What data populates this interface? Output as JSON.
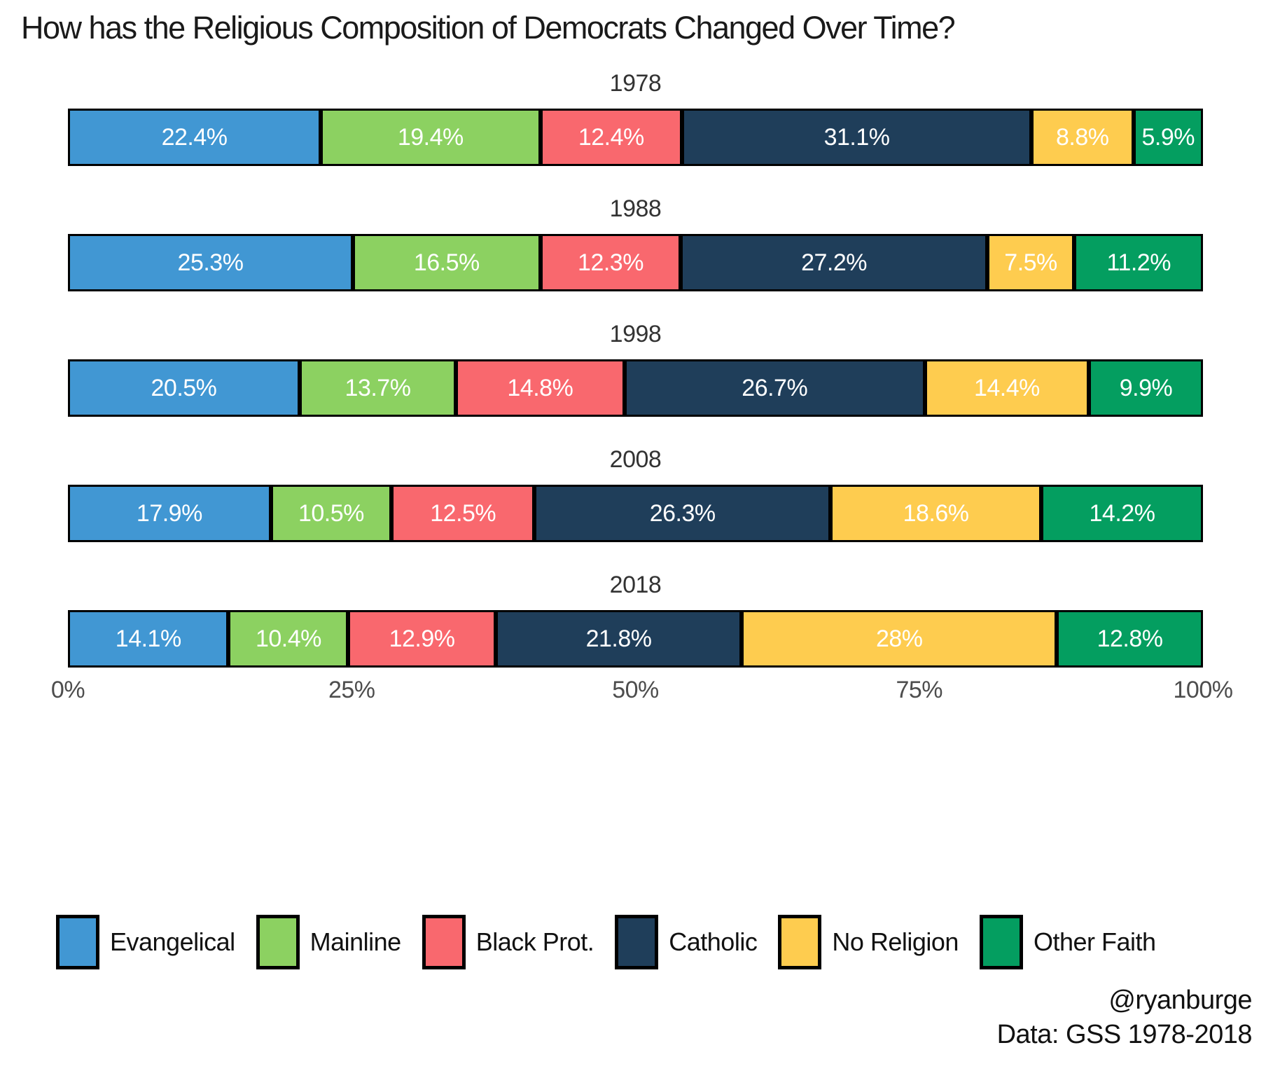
{
  "title": "How has the Religious Composition of Democrats Changed Over Time?",
  "attribution": {
    "handle": "@ryanburge",
    "source": "Data: GSS 1978-2018"
  },
  "axis": {
    "tick_labels": [
      "0%",
      "25%",
      "50%",
      "75%",
      "100%"
    ],
    "tick_positions": [
      0,
      25,
      50,
      75,
      100
    ]
  },
  "legend": {
    "items": [
      {
        "label": "Evangelical",
        "color": "#4197D3"
      },
      {
        "label": "Mainline",
        "color": "#8CD161"
      },
      {
        "label": "Black Prot.",
        "color": "#F9686E"
      },
      {
        "label": "Catholic",
        "color": "#1F3E5A"
      },
      {
        "label": "No Religion",
        "color": "#FECC4F"
      },
      {
        "label": "Other Faith",
        "color": "#049E60"
      }
    ]
  },
  "chart_data": {
    "type": "bar",
    "stacked": true,
    "orientation": "horizontal",
    "title": "How has the Religious Composition of Democrats Changed Over Time?",
    "categories": [
      "1978",
      "1988",
      "1998",
      "2008",
      "2018"
    ],
    "series": [
      {
        "name": "Evangelical",
        "color": "#4197D3",
        "values": [
          22.4,
          25.3,
          20.5,
          17.9,
          14.1
        ]
      },
      {
        "name": "Mainline",
        "color": "#8CD161",
        "values": [
          19.4,
          16.5,
          13.7,
          10.5,
          10.4
        ]
      },
      {
        "name": "Black Prot.",
        "color": "#F9686E",
        "values": [
          12.4,
          12.3,
          14.8,
          12.5,
          12.9
        ]
      },
      {
        "name": "Catholic",
        "color": "#1F3E5A",
        "values": [
          31.1,
          27.2,
          26.7,
          26.3,
          21.8
        ]
      },
      {
        "name": "No Religion",
        "color": "#FECC4F",
        "values": [
          8.8,
          7.5,
          14.4,
          18.6,
          28
        ]
      },
      {
        "name": "Other Faith",
        "color": "#049E60",
        "values": [
          5.9,
          11.2,
          9.9,
          14.2,
          12.8
        ]
      }
    ],
    "value_label_suffix": "%",
    "xlim": [
      0,
      100
    ],
    "xlabel": "",
    "ylabel": "",
    "grid": false,
    "legend_position": "bottom",
    "bar_border_color": "#000000",
    "label_color": "#ffffff"
  }
}
